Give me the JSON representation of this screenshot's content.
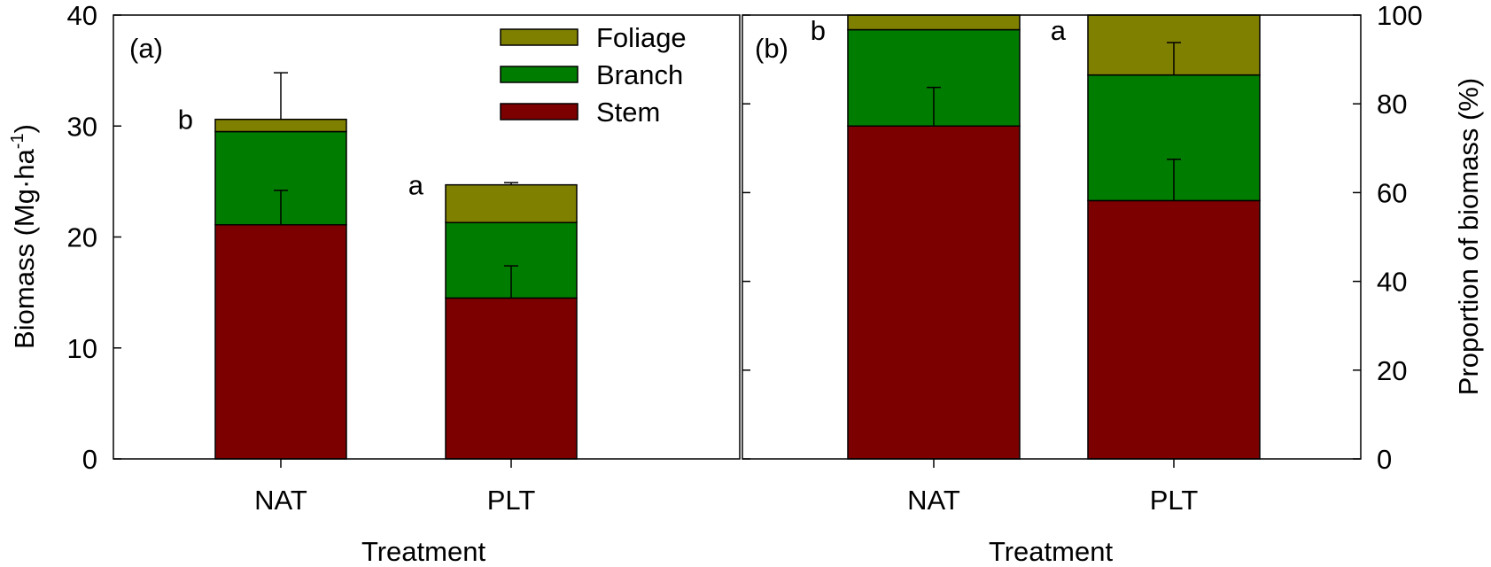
{
  "colors": {
    "Stem": "#7d0000",
    "Branch": "#007d00",
    "Foliage": "#808000",
    "axis": "#000000",
    "background": "#ffffff"
  },
  "chart_data": [
    {
      "type": "bar",
      "stacked": true,
      "panel_label": "(a)",
      "categories": [
        "NAT",
        "PLT"
      ],
      "series": [
        {
          "name": "Stem",
          "values": [
            21.1,
            14.5
          ],
          "errors": [
            3.1,
            2.9
          ]
        },
        {
          "name": "Branch",
          "values": [
            8.4,
            6.8
          ],
          "errors": [
            0.0,
            0.0
          ]
        },
        {
          "name": "Foliage",
          "values": [
            1.1,
            3.4
          ],
          "errors": [
            4.2,
            0.2
          ]
        }
      ],
      "significance": [
        "b",
        "a"
      ],
      "xlabel": "Treatment",
      "ylabel_main": "Biomass (Mg·ha",
      "ylabel_sup": "-1",
      "ylabel_close": ")",
      "ylim": [
        0,
        40
      ],
      "yticks": [
        "0",
        "10",
        "20",
        "30",
        "40"
      ],
      "legend": [
        "Foliage",
        "Branch",
        "Stem"
      ],
      "legend_position": "top-right",
      "grid": false,
      "yaxis_side": "left"
    },
    {
      "type": "bar",
      "stacked": true,
      "panel_label": "(b)",
      "categories": [
        "NAT",
        "PLT"
      ],
      "series": [
        {
          "name": "Stem",
          "values": [
            75.0,
            58.2
          ],
          "errors": [
            8.7,
            9.3
          ]
        },
        {
          "name": "Branch",
          "values": [
            21.7,
            28.3
          ],
          "errors": [
            0.0,
            7.3
          ]
        },
        {
          "name": "Foliage",
          "values": [
            3.3,
            13.5
          ],
          "errors": [
            0.0,
            0.0
          ]
        }
      ],
      "significance": [
        "b",
        "a"
      ],
      "xlabel": "Treatment",
      "ylabel": "Proportion of biomass (%)",
      "ylim": [
        0,
        100
      ],
      "yticks": [
        "0",
        "20",
        "40",
        "60",
        "80",
        "100"
      ],
      "grid": false,
      "yaxis_side": "right"
    }
  ]
}
